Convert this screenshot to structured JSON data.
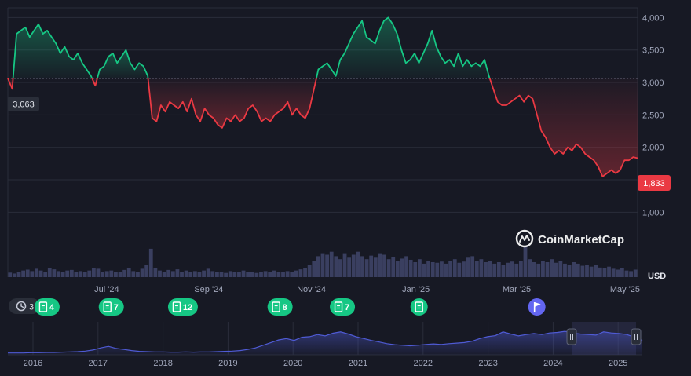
{
  "chart_data": {
    "type": "line",
    "ylim": [
      0,
      4150
    ],
    "yticks": [
      1000,
      1500,
      2000,
      2500,
      3000,
      3500,
      4000
    ],
    "ytick_labels": [
      "1,000",
      "1,500",
      "2,000",
      "2,500",
      "3,000",
      "3,500",
      "4,000"
    ],
    "currency_label": "USD",
    "reference_value": 3063,
    "reference_label": "3,063",
    "last_value": 1833,
    "last_label": "1,833",
    "x_tick_labels": [
      {
        "label": "Jul '24",
        "t": 0.157
      },
      {
        "label": "Sep '24",
        "t": 0.319
      },
      {
        "label": "Nov '24",
        "t": 0.482
      },
      {
        "label": "Jan '25",
        "t": 0.648
      },
      {
        "label": "Mar '25",
        "t": 0.808
      },
      {
        "label": "May '25",
        "t": 0.98
      }
    ],
    "series": [
      {
        "values": [
          3063,
          2900,
          3750,
          3800,
          3850,
          3700,
          3800,
          3900,
          3750,
          3800,
          3700,
          3600,
          3450,
          3550,
          3400,
          3350,
          3450,
          3300,
          3200,
          3100,
          2950,
          3200,
          3250,
          3400,
          3450,
          3300,
          3400,
          3500,
          3300,
          3200,
          3300,
          3250,
          3100,
          2450,
          2400,
          2650,
          2550,
          2700,
          2650,
          2600,
          2700,
          2550,
          2750,
          2500,
          2400,
          2600,
          2500,
          2450,
          2350,
          2300,
          2450,
          2400,
          2500,
          2400,
          2450,
          2600,
          2650,
          2550,
          2400,
          2450,
          2400,
          2500,
          2550,
          2600,
          2700,
          2500,
          2600,
          2500,
          2450,
          2600,
          2900,
          3200,
          3250,
          3300,
          3200,
          3100,
          3350,
          3450,
          3600,
          3750,
          3850,
          3950,
          3700,
          3650,
          3600,
          3800,
          3950,
          4000,
          3900,
          3750,
          3500,
          3300,
          3350,
          3450,
          3300,
          3450,
          3600,
          3800,
          3550,
          3400,
          3300,
          3350,
          3250,
          3450,
          3250,
          3350,
          3250,
          3300,
          3250,
          3350,
          3100,
          2900,
          2700,
          2650,
          2650,
          2700,
          2750,
          2800,
          2700,
          2800,
          2750,
          2500,
          2250,
          2150,
          2000,
          1900,
          1950,
          1900,
          2000,
          1950,
          2050,
          2000,
          1900,
          1850,
          1800,
          1700,
          1550,
          1600,
          1650,
          1600,
          1650,
          1800,
          1800,
          1850,
          1833
        ]
      }
    ],
    "volume": [
      0.15,
      0.12,
      0.18,
      0.22,
      0.25,
      0.2,
      0.28,
      0.22,
      0.18,
      0.3,
      0.26,
      0.2,
      0.18,
      0.22,
      0.24,
      0.16,
      0.2,
      0.18,
      0.22,
      0.3,
      0.28,
      0.18,
      0.2,
      0.22,
      0.16,
      0.18,
      0.24,
      0.3,
      0.2,
      0.18,
      0.28,
      0.4,
      0.95,
      0.3,
      0.22,
      0.18,
      0.24,
      0.2,
      0.26,
      0.18,
      0.22,
      0.16,
      0.2,
      0.18,
      0.22,
      0.28,
      0.2,
      0.16,
      0.18,
      0.14,
      0.2,
      0.16,
      0.18,
      0.22,
      0.16,
      0.18,
      0.14,
      0.16,
      0.2,
      0.18,
      0.22,
      0.16,
      0.18,
      0.2,
      0.16,
      0.22,
      0.26,
      0.3,
      0.4,
      0.55,
      0.7,
      0.8,
      0.75,
      0.85,
      0.7,
      0.6,
      0.8,
      0.65,
      0.75,
      0.85,
      0.7,
      0.6,
      0.72,
      0.65,
      0.8,
      0.75,
      0.6,
      0.68,
      0.55,
      0.62,
      0.7,
      0.58,
      0.5,
      0.6,
      0.45,
      0.55,
      0.5,
      0.48,
      0.52,
      0.45,
      0.55,
      0.6,
      0.48,
      0.52,
      0.65,
      0.7,
      0.55,
      0.6,
      0.5,
      0.55,
      0.45,
      0.5,
      0.4,
      0.48,
      0.52,
      0.45,
      0.55,
      1.0,
      0.6,
      0.5,
      0.45,
      0.55,
      0.5,
      0.6,
      0.48,
      0.55,
      0.45,
      0.4,
      0.5,
      0.45,
      0.38,
      0.42,
      0.35,
      0.4,
      0.32,
      0.3,
      0.35,
      0.28,
      0.25,
      0.3,
      0.22,
      0.2,
      0.25
    ]
  },
  "brand": {
    "name": "CoinMarketCap"
  },
  "colors": {
    "up": "#16c784",
    "down": "#ea3943",
    "marker": "#16c784",
    "flag": "#6366f1",
    "volume": "#3a3f60",
    "navigator": "#4f5bd5",
    "grid": "#2a2d3a"
  },
  "events": {
    "history_count": "3",
    "markers": [
      {
        "t": 0.056,
        "count": "4",
        "kind": "doc"
      },
      {
        "t": 0.158,
        "count": "7",
        "kind": "doc"
      },
      {
        "t": 0.268,
        "count": "12",
        "kind": "doc"
      },
      {
        "t": 0.426,
        "count": "8",
        "kind": "doc"
      },
      {
        "t": 0.525,
        "count": "7",
        "kind": "doc"
      },
      {
        "t": 0.653,
        "count": "",
        "kind": "doc"
      },
      {
        "t": 0.84,
        "count": "",
        "kind": "flag"
      }
    ]
  },
  "navigator": {
    "year_labels": [
      "2016",
      "2017",
      "2018",
      "2019",
      "2020",
      "2021",
      "2022",
      "2023",
      "2024",
      "2025"
    ],
    "values": [
      0.01,
      0.01,
      0.01,
      0.02,
      0.02,
      0.03,
      0.03,
      0.04,
      0.05,
      0.06,
      0.08,
      0.12,
      0.2,
      0.26,
      0.18,
      0.14,
      0.1,
      0.07,
      0.06,
      0.05,
      0.05,
      0.04,
      0.04,
      0.05,
      0.04,
      0.05,
      0.05,
      0.06,
      0.07,
      0.08,
      0.1,
      0.14,
      0.2,
      0.3,
      0.4,
      0.5,
      0.55,
      0.48,
      0.6,
      0.62,
      0.7,
      0.65,
      0.75,
      0.8,
      0.72,
      0.62,
      0.55,
      0.48,
      0.42,
      0.36,
      0.32,
      0.3,
      0.28,
      0.3,
      0.33,
      0.35,
      0.33,
      0.36,
      0.38,
      0.4,
      0.45,
      0.55,
      0.62,
      0.66,
      0.8,
      0.72,
      0.65,
      0.7,
      0.74,
      0.7,
      0.76,
      0.78,
      0.82,
      0.75,
      0.72,
      0.7,
      0.68,
      0.8,
      0.76,
      0.74,
      0.7,
      0.6,
      0.48
    ]
  }
}
